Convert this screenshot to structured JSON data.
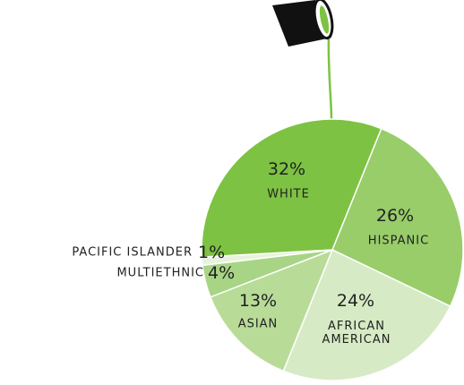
{
  "chart_data": {
    "type": "pie",
    "categories": [
      "HISPANIC",
      "AFRICAN AMERICAN",
      "ASIAN",
      "MULTIETHNIC",
      "PACIFIC ISLANDER",
      "WHITE"
    ],
    "values": [
      26,
      24,
      13,
      4,
      1,
      32
    ],
    "value_labels": [
      "26%",
      "24%",
      "13%",
      "4%",
      "1%",
      "32%"
    ],
    "colors": [
      "#98cd6a",
      "#d6ebc5",
      "#b8dc98",
      "#a8d585",
      "#e8f3dd",
      "#7dc242"
    ]
  }
}
